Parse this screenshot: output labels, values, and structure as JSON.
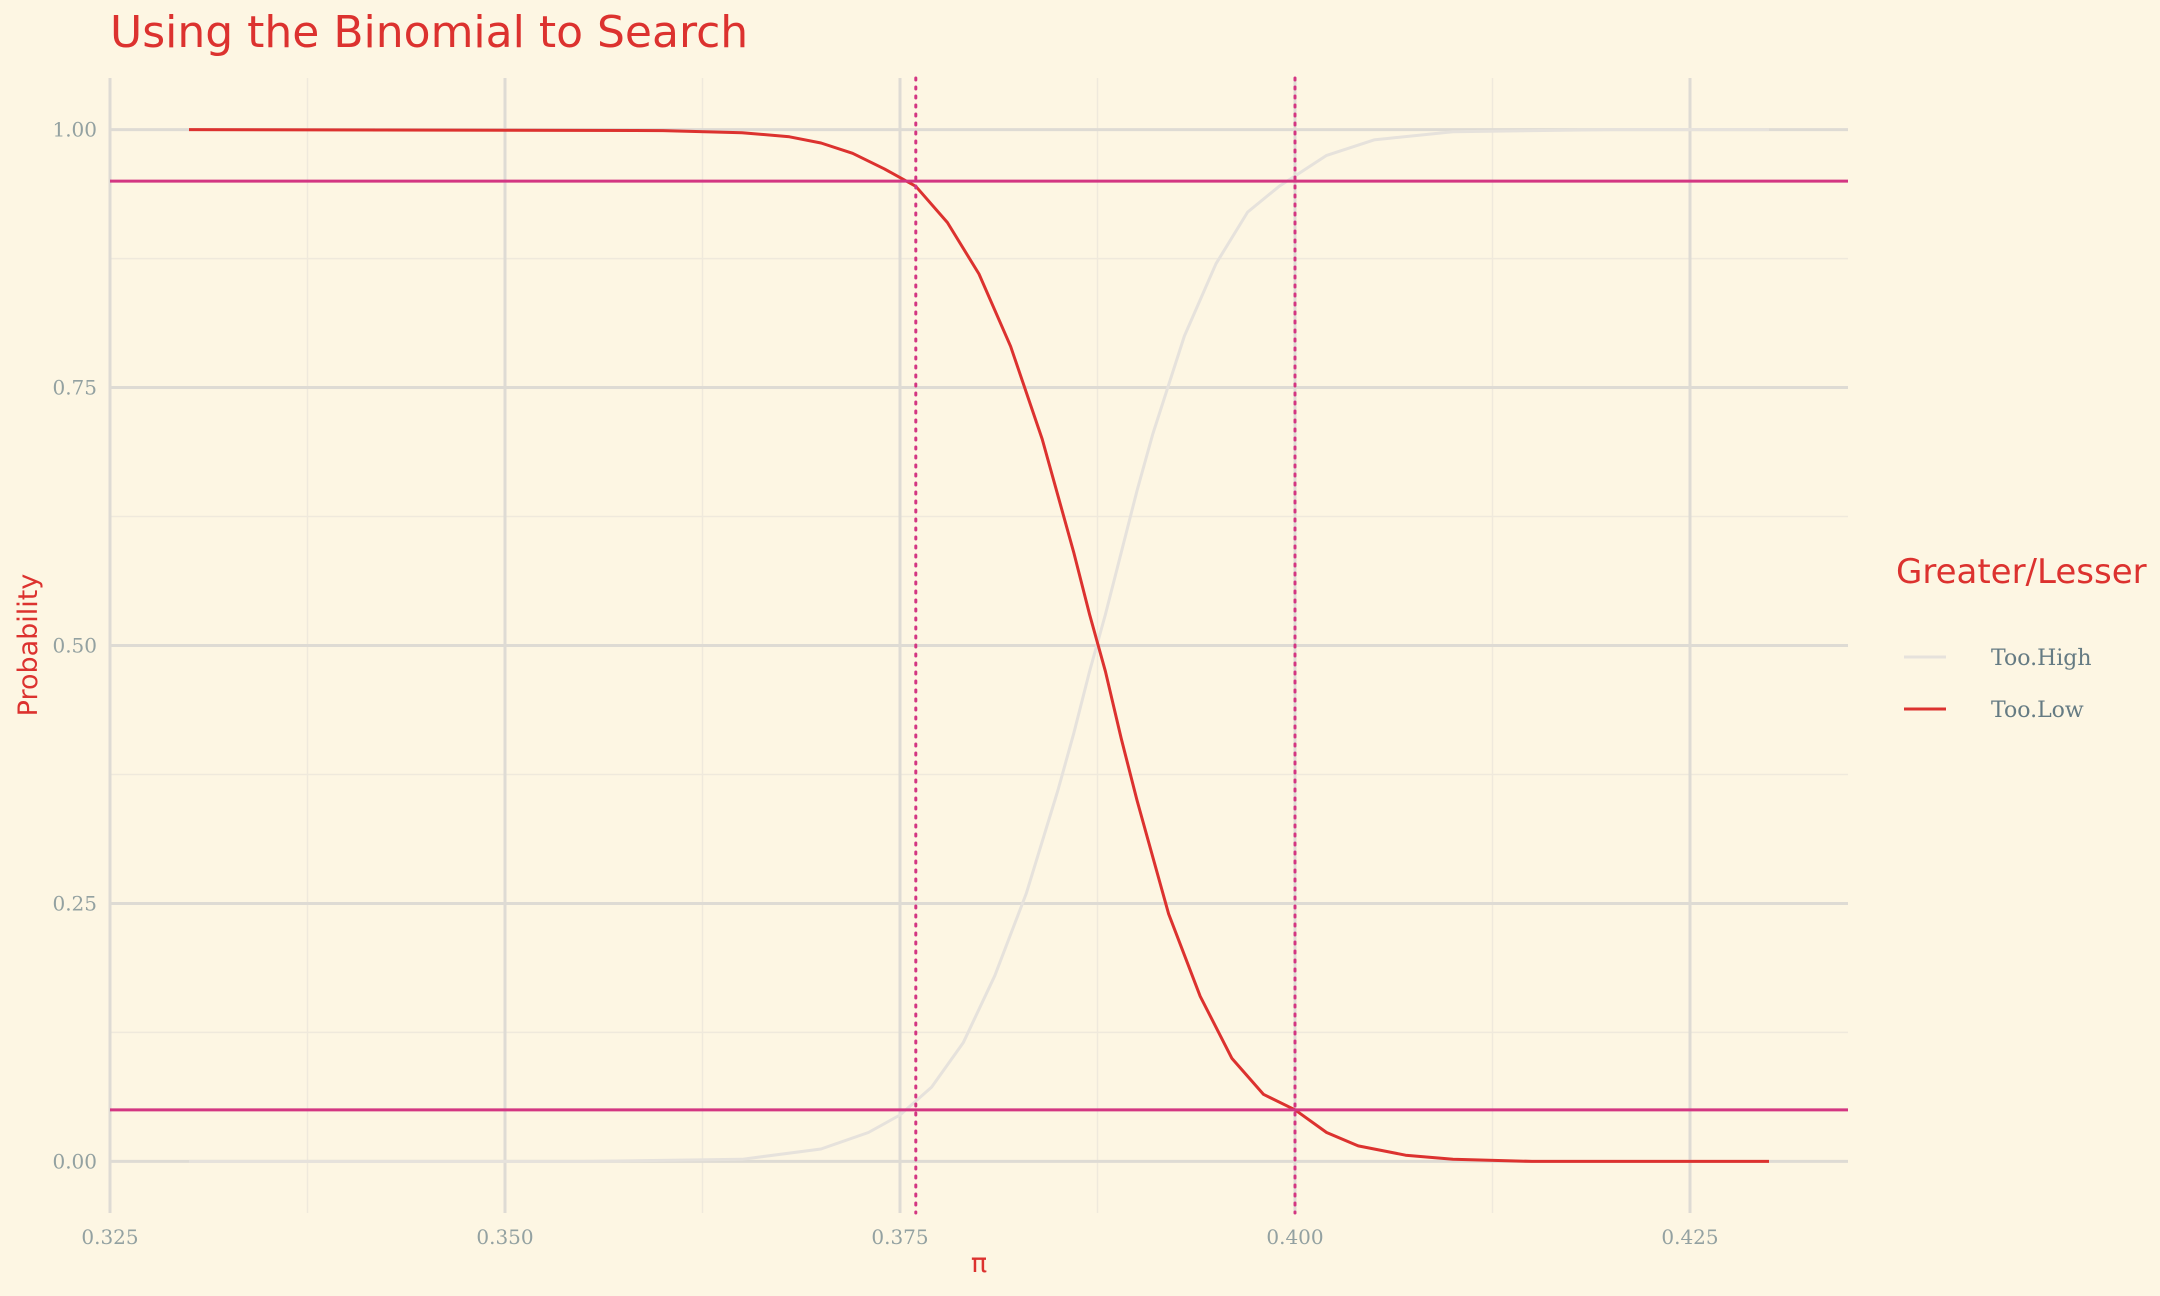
{
  "chart_data": {
    "type": "line",
    "title": "Using the Binomial to Search",
    "xlabel": "π",
    "ylabel": "Probability",
    "xlim": [
      0.325,
      0.435
    ],
    "ylim": [
      -0.05,
      1.05
    ],
    "x_ticks": [
      "0.325",
      "0.350",
      "0.375",
      "0.400",
      "0.425"
    ],
    "x_tick_values": [
      0.325,
      0.35,
      0.375,
      0.4,
      0.425
    ],
    "y_ticks": [
      "0.00",
      "0.25",
      "0.50",
      "0.75",
      "1.00"
    ],
    "y_tick_values": [
      0,
      0.25,
      0.5,
      0.75,
      1.0
    ],
    "grid": true,
    "legend": {
      "title": "Greater/Lesser",
      "position": "right",
      "entries": [
        {
          "label": "Too.High",
          "color": "#e6e2dc"
        },
        {
          "label": "Too.Low",
          "color": "#dc322f"
        }
      ]
    },
    "series": [
      {
        "name": "Too.High",
        "color": "#e6e2dc",
        "x": [
          0.33,
          0.355,
          0.365,
          0.37,
          0.373,
          0.375,
          0.377,
          0.379,
          0.381,
          0.383,
          0.385,
          0.386,
          0.387,
          0.388,
          0.389,
          0.39,
          0.391,
          0.393,
          0.395,
          0.397,
          0.399,
          0.4,
          0.402,
          0.405,
          0.41,
          0.42,
          0.43
        ],
        "y": [
          0.0,
          0.0,
          0.002,
          0.012,
          0.028,
          0.045,
          0.072,
          0.115,
          0.18,
          0.26,
          0.36,
          0.415,
          0.475,
          0.53,
          0.59,
          0.65,
          0.705,
          0.8,
          0.87,
          0.92,
          0.945,
          0.955,
          0.975,
          0.99,
          0.998,
          1.0,
          1.0
        ]
      },
      {
        "name": "Too.Low",
        "color": "#dc322f",
        "x": [
          0.33,
          0.36,
          0.365,
          0.368,
          0.37,
          0.372,
          0.374,
          0.376,
          0.378,
          0.38,
          0.382,
          0.384,
          0.386,
          0.387,
          0.388,
          0.389,
          0.39,
          0.392,
          0.394,
          0.396,
          0.398,
          0.4,
          0.402,
          0.404,
          0.407,
          0.41,
          0.415,
          0.42,
          0.43
        ],
        "y": [
          1.0,
          0.999,
          0.997,
          0.993,
          0.987,
          0.977,
          0.962,
          0.945,
          0.91,
          0.86,
          0.79,
          0.7,
          0.59,
          0.53,
          0.475,
          0.41,
          0.35,
          0.24,
          0.16,
          0.1,
          0.065,
          0.05,
          0.028,
          0.015,
          0.006,
          0.002,
          0.0,
          0.0,
          0.0
        ]
      }
    ],
    "hlines": [
      {
        "y": 0.95,
        "color": "#d33682",
        "style": "solid"
      },
      {
        "y": 0.05,
        "color": "#d33682",
        "style": "solid"
      }
    ],
    "vlines": [
      {
        "x": 0.376,
        "color": "#d33682",
        "style": "dotted"
      },
      {
        "x": 0.4,
        "color": "#d33682",
        "style": "dotted"
      }
    ],
    "colors": {
      "background": "#fdf6e3",
      "grid_major": "#dedbd4",
      "grid_minor": "#efe9dc",
      "accent": "#dc322f",
      "reference": "#d33682"
    }
  }
}
